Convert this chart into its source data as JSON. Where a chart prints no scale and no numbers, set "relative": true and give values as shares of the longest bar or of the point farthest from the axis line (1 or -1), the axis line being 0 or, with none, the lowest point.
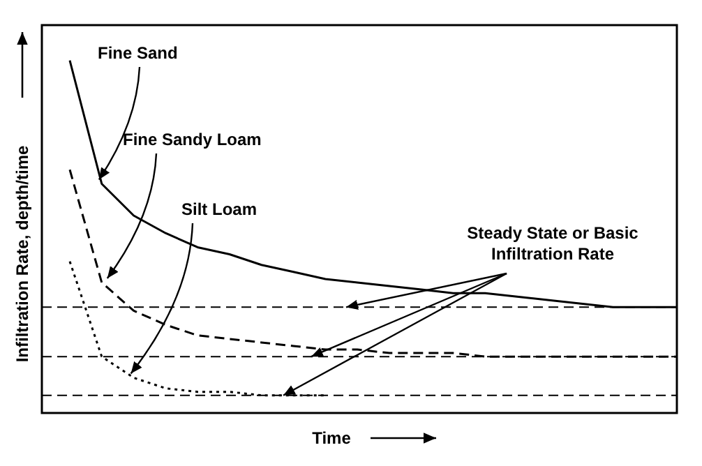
{
  "chart_data": {
    "type": "line",
    "relative": true,
    "xlabel": "Time",
    "ylabel": "Infiltration Rate, depth/time",
    "categories": [
      null,
      null,
      null,
      null,
      null,
      null,
      null,
      null,
      null,
      null,
      null,
      null,
      null,
      null,
      null,
      null,
      null,
      null,
      null,
      null
    ],
    "series": [
      {
        "name": "Fine Sand",
        "color": "#000000",
        "line_style": "solid",
        "values": [
          1,
          0.65,
          0.56,
          0.51,
          0.47,
          0.45,
          0.42,
          0.4,
          0.38,
          0.37,
          0.36,
          0.35,
          0.34,
          0.34,
          0.33,
          0.32,
          0.31,
          0.3,
          0.3,
          0.3
        ]
      },
      {
        "name": "Fine Sandy Loam",
        "color": "#000000",
        "line_style": "dashed",
        "values": [
          0.69,
          0.37,
          0.29,
          0.25,
          0.22,
          0.21,
          0.2,
          0.19,
          0.18,
          0.18,
          0.17,
          0.17,
          0.17,
          0.16,
          0.16,
          0.16,
          0.16,
          0.16,
          0.16,
          0.16
        ]
      },
      {
        "name": "Silt Loam",
        "color": "#000000",
        "line_style": "dotted",
        "values": [
          0.43,
          0.16,
          0.1,
          0.07,
          0.06,
          0.06,
          0.05,
          0.05,
          0.05,
          null,
          null,
          null,
          null,
          null,
          null,
          null,
          null,
          null,
          null,
          null
        ]
      }
    ],
    "ref_lines": [
      {
        "axis": "y",
        "value": 0.3,
        "color": "#000000",
        "line_style": "dashed"
      },
      {
        "axis": "y",
        "value": 0.16,
        "color": "#000000",
        "line_style": "dashed"
      },
      {
        "axis": "y",
        "value": 0.05,
        "color": "#000000",
        "line_style": "dashed"
      }
    ],
    "annotations": [
      "Steady State or Basic Infiltration Rate"
    ],
    "grid": false,
    "marker": "none"
  }
}
